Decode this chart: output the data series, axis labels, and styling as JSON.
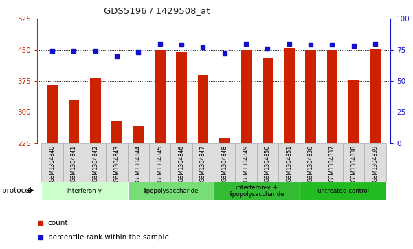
{
  "title": "GDS5196 / 1429508_at",
  "samples": [
    "GSM1304840",
    "GSM1304841",
    "GSM1304842",
    "GSM1304843",
    "GSM1304844",
    "GSM1304845",
    "GSM1304846",
    "GSM1304847",
    "GSM1304848",
    "GSM1304849",
    "GSM1304850",
    "GSM1304851",
    "GSM1304836",
    "GSM1304837",
    "GSM1304838",
    "GSM1304839"
  ],
  "counts": [
    365,
    328,
    382,
    278,
    268,
    450,
    444,
    388,
    237,
    449,
    430,
    454,
    449,
    449,
    378,
    451
  ],
  "percentile_ranks": [
    74,
    74,
    74,
    70,
    73,
    80,
    79,
    77,
    72,
    80,
    76,
    80,
    79,
    79,
    78,
    80
  ],
  "ylim_left": [
    225,
    525
  ],
  "ylim_right": [
    0,
    100
  ],
  "yticks_left": [
    225,
    300,
    375,
    450,
    525
  ],
  "yticks_right": [
    0,
    25,
    50,
    75,
    100
  ],
  "bar_color": "#cc2200",
  "dot_color": "#1111cc",
  "grid_color": "#000000",
  "groups": [
    {
      "label": "interferon-γ",
      "start": 0,
      "end": 4,
      "color": "#ccffcc"
    },
    {
      "label": "lipopolysaccharide",
      "start": 4,
      "end": 8,
      "color": "#77dd77"
    },
    {
      "label": "interferon-γ +\nlipopolysaccharide",
      "start": 8,
      "end": 12,
      "color": "#33bb33"
    },
    {
      "label": "untreated control",
      "start": 12,
      "end": 16,
      "color": "#22bb22"
    }
  ],
  "bar_width": 0.5,
  "dot_size": 25,
  "label_bg_color": "#dddddd",
  "label_border_color": "#aaaaaa"
}
